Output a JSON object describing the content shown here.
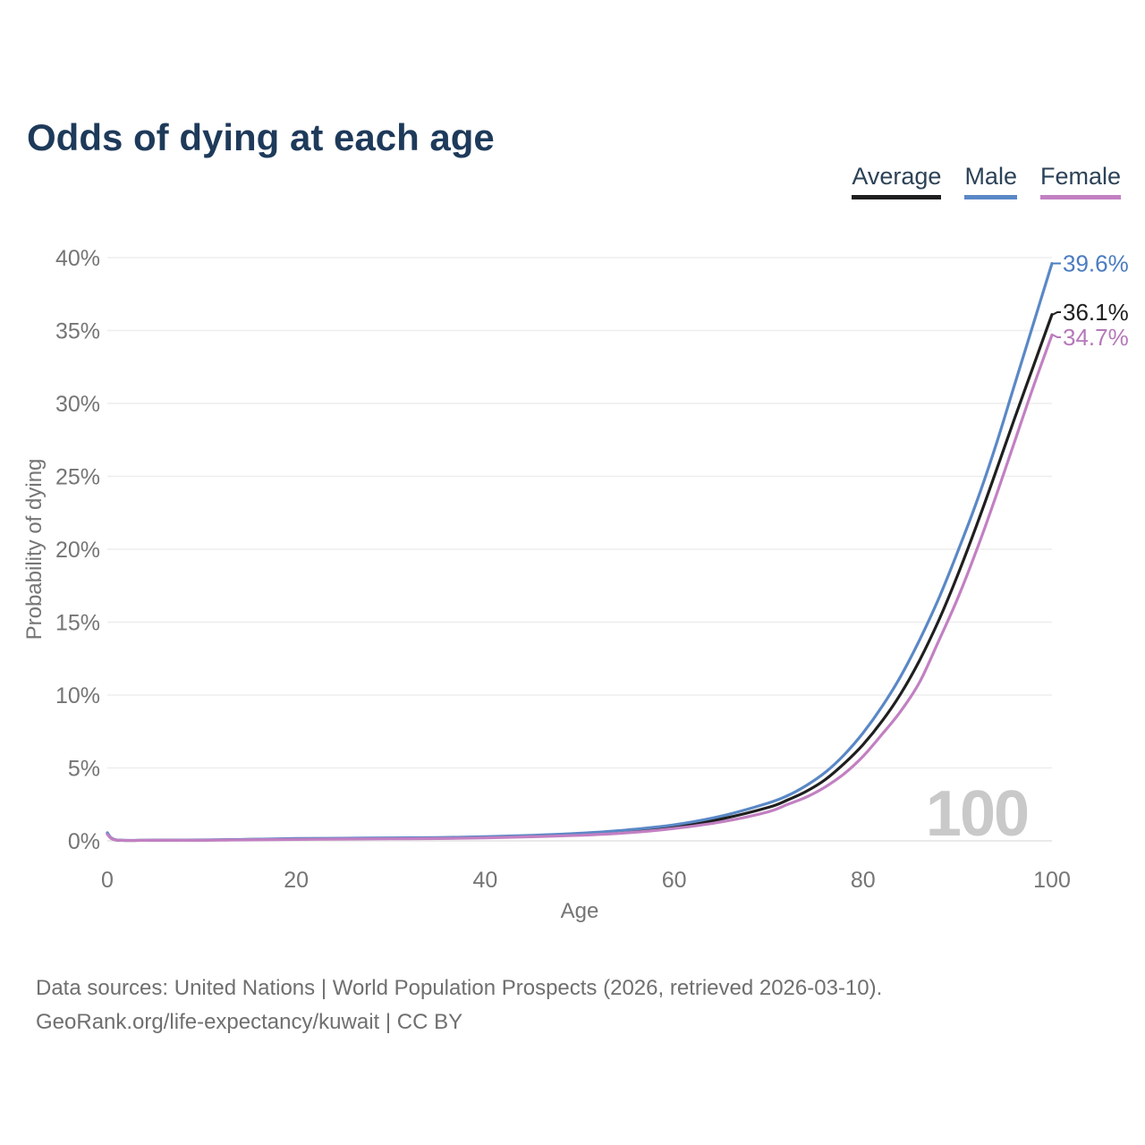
{
  "title": "Odds of dying at each age",
  "legend": {
    "items": [
      {
        "label": "Average",
        "color": "#1f1f1f"
      },
      {
        "label": "Male",
        "color": "#5a88c6"
      },
      {
        "label": "Female",
        "color": "#c280c2"
      }
    ]
  },
  "chart_data": {
    "type": "line",
    "title": "Odds of dying at each age",
    "xlabel": "Age",
    "ylabel": "Probability of dying",
    "xlim": [
      0,
      100
    ],
    "ylim": [
      0,
      40
    ],
    "x_ticks": [
      0,
      20,
      40,
      60,
      80,
      100
    ],
    "y_ticks": [
      {
        "value": 0,
        "label": "0%"
      },
      {
        "value": 5,
        "label": "5%"
      },
      {
        "value": 10,
        "label": "10%"
      },
      {
        "value": 15,
        "label": "15%"
      },
      {
        "value": 20,
        "label": "20%"
      },
      {
        "value": 25,
        "label": "25%"
      },
      {
        "value": 30,
        "label": "30%"
      },
      {
        "value": 35,
        "label": "35%"
      },
      {
        "value": 40,
        "label": "40%"
      }
    ],
    "grid": true,
    "legend_position": "top-right",
    "watermark": "100",
    "x": [
      0,
      1,
      5,
      10,
      15,
      20,
      25,
      30,
      35,
      40,
      45,
      50,
      55,
      60,
      65,
      70,
      72,
      74,
      76,
      78,
      80,
      82,
      84,
      86,
      88,
      90,
      92,
      94,
      96,
      98,
      100
    ],
    "series": [
      {
        "name": "Average",
        "color": "#1f1f1f",
        "label_color": "#1f1f1f",
        "end_label": "36.1%",
        "values": [
          0.5,
          0.05,
          0.04,
          0.05,
          0.09,
          0.13,
          0.15,
          0.17,
          0.19,
          0.24,
          0.33,
          0.45,
          0.65,
          0.95,
          1.5,
          2.3,
          2.8,
          3.4,
          4.2,
          5.3,
          6.6,
          8.2,
          10.1,
          12.4,
          15.1,
          18.2,
          21.6,
          25.2,
          28.9,
          32.5,
          36.1
        ]
      },
      {
        "name": "Male",
        "color": "#5a88c6",
        "label_color": "#4a7cc0",
        "end_label": "39.6%",
        "values": [
          0.55,
          0.06,
          0.05,
          0.06,
          0.1,
          0.16,
          0.18,
          0.2,
          0.22,
          0.28,
          0.38,
          0.52,
          0.75,
          1.1,
          1.7,
          2.6,
          3.1,
          3.8,
          4.7,
          5.9,
          7.4,
          9.2,
          11.3,
          13.8,
          16.6,
          19.8,
          23.2,
          27.0,
          31.2,
          35.4,
          39.6
        ]
      },
      {
        "name": "Female",
        "color": "#c280c2",
        "label_color": "#b578ba",
        "end_label": "34.7%",
        "values": [
          0.45,
          0.05,
          0.04,
          0.04,
          0.07,
          0.1,
          0.12,
          0.14,
          0.16,
          0.2,
          0.28,
          0.38,
          0.55,
          0.85,
          1.3,
          2.0,
          2.5,
          3.0,
          3.7,
          4.6,
          5.8,
          7.3,
          8.9,
          10.9,
          13.7,
          16.6,
          19.9,
          23.5,
          27.3,
          31.1,
          34.7
        ]
      }
    ],
    "colors": {
      "grid": "#eeeeee",
      "zero_line": "#e2e2e2",
      "axis_text": "#757575",
      "watermark": "#c9c9c9"
    }
  },
  "footer": {
    "line1": "Data sources: United Nations | World Population Prospects (2026, retrieved 2026-03-10).",
    "line2": "GeoRank.org/life-expectancy/kuwait | CC BY"
  }
}
